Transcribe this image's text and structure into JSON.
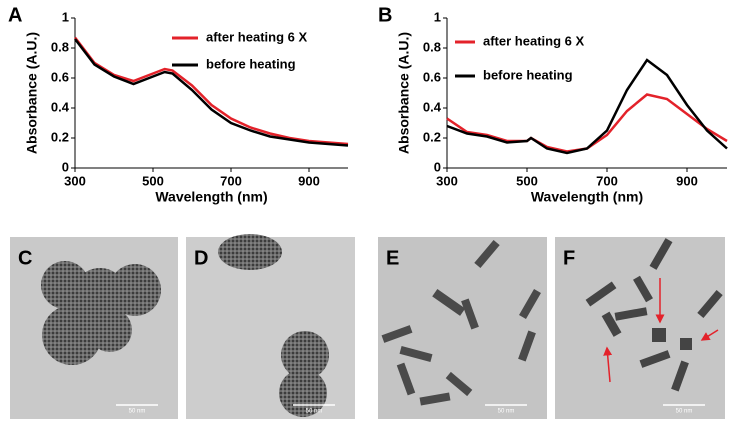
{
  "chart_data": [
    {
      "type": "line",
      "panel": "A",
      "xlabel": "Wavelength (nm)",
      "ylabel": "Absorbance (A.U.)",
      "x": [
        300,
        350,
        400,
        450,
        500,
        530,
        550,
        600,
        650,
        700,
        750,
        800,
        850,
        900,
        950,
        1000
      ],
      "series": [
        {
          "name": "after heating 6 X",
          "color": "#e3222a",
          "values": [
            0.87,
            0.7,
            0.62,
            0.58,
            0.63,
            0.66,
            0.65,
            0.55,
            0.42,
            0.33,
            0.27,
            0.23,
            0.2,
            0.18,
            0.17,
            0.16
          ]
        },
        {
          "name": "before heating",
          "color": "#000000",
          "values": [
            0.86,
            0.69,
            0.61,
            0.56,
            0.61,
            0.64,
            0.63,
            0.52,
            0.39,
            0.3,
            0.25,
            0.21,
            0.19,
            0.17,
            0.16,
            0.15
          ]
        }
      ],
      "xlim": [
        300,
        1000
      ],
      "xticks": [
        300,
        500,
        700,
        900
      ],
      "ylim": [
        0,
        1
      ],
      "yticks": [
        0,
        0.2,
        0.4,
        0.6,
        0.8,
        1
      ]
    },
    {
      "type": "line",
      "panel": "B",
      "xlabel": "Wavelength (nm)",
      "ylabel": "Absorbance (A.U.)",
      "x": [
        300,
        350,
        400,
        450,
        500,
        510,
        550,
        600,
        650,
        700,
        750,
        800,
        850,
        900,
        950,
        1000
      ],
      "series": [
        {
          "name": "after heating 6 X",
          "color": "#e3222a",
          "values": [
            0.33,
            0.24,
            0.22,
            0.18,
            0.18,
            0.2,
            0.14,
            0.11,
            0.13,
            0.22,
            0.38,
            0.49,
            0.46,
            0.36,
            0.26,
            0.18
          ]
        },
        {
          "name": "before heating",
          "color": "#000000",
          "values": [
            0.28,
            0.23,
            0.21,
            0.17,
            0.18,
            0.2,
            0.13,
            0.1,
            0.13,
            0.25,
            0.52,
            0.72,
            0.62,
            0.42,
            0.25,
            0.13
          ]
        }
      ],
      "xlim": [
        300,
        1000
      ],
      "xticks": [
        300,
        500,
        700,
        900
      ],
      "ylim": [
        0,
        1
      ],
      "yticks": [
        0,
        0.2,
        0.4,
        0.6,
        0.8,
        1
      ]
    }
  ],
  "images": [
    {
      "panel": "C",
      "scale_bar": "50 nm"
    },
    {
      "panel": "D",
      "scale_bar": "50 nm"
    },
    {
      "panel": "E",
      "scale_bar": "50 nm"
    },
    {
      "panel": "F",
      "scale_bar": "50 nm"
    }
  ]
}
